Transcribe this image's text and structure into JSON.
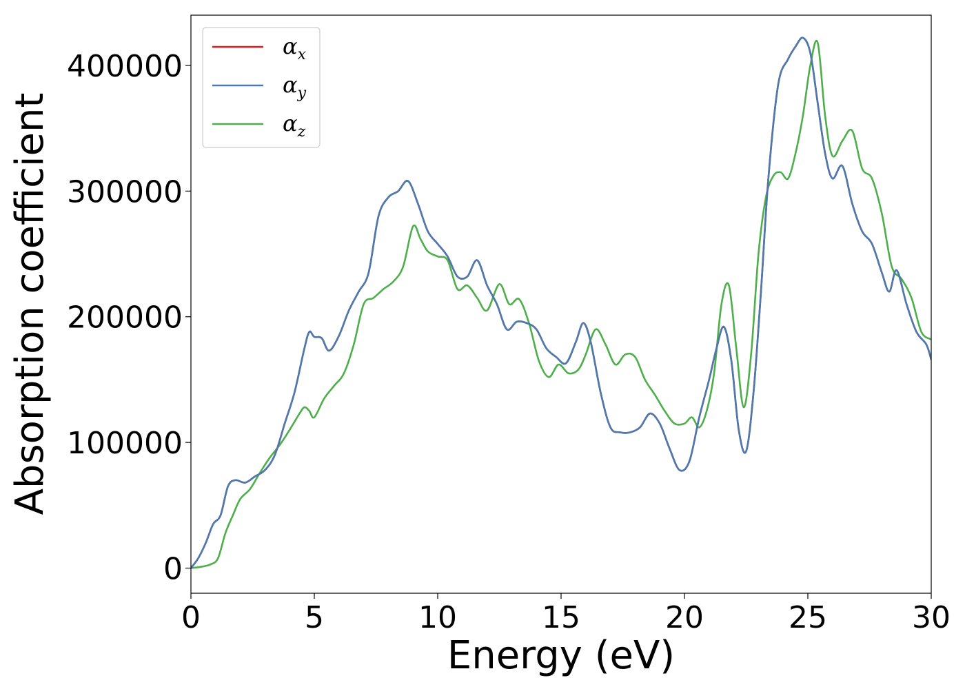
{
  "chart_data": {
    "type": "line",
    "title": "",
    "xlabel": "Energy (eV)",
    "ylabel": "Absorption coefficient",
    "xlim": [
      0,
      30
    ],
    "ylim": [
      -20000,
      440000
    ],
    "xticks": [
      "0",
      "5",
      "10",
      "15",
      "20",
      "25",
      "30"
    ],
    "yticks": [
      "0",
      "100000",
      "200000",
      "300000",
      "400000"
    ],
    "xtick_values": [
      0,
      5,
      10,
      15,
      20,
      25,
      30
    ],
    "ytick_values": [
      0,
      100000,
      200000,
      300000,
      400000
    ],
    "grid": false,
    "legend_position": "top-left",
    "series": [
      {
        "name": "α_x",
        "label_base": "α",
        "label_sub": "x",
        "color": "#e41a1c",
        "x": [
          0,
          0.3,
          0.6,
          0.9,
          1.2,
          1.5,
          1.8,
          2.2,
          2.6,
          3.0,
          3.4,
          3.8,
          4.2,
          4.6,
          4.8,
          5.0,
          5.3,
          5.6,
          6.0,
          6.4,
          6.8,
          7.2,
          7.6,
          8.0,
          8.4,
          8.8,
          9.2,
          9.6,
          10.0,
          10.4,
          10.8,
          11.2,
          11.6,
          12.0,
          12.4,
          12.8,
          13.2,
          13.6,
          14.0,
          14.4,
          14.8,
          15.2,
          15.6,
          15.9,
          16.2,
          16.6,
          17.0,
          17.4,
          17.8,
          18.2,
          18.6,
          19.0,
          19.4,
          19.8,
          20.2,
          20.6,
          21.0,
          21.3,
          21.6,
          21.9,
          22.2,
          22.5,
          22.8,
          23.1,
          23.4,
          23.8,
          24.2,
          24.5,
          24.8,
          25.1,
          25.4,
          25.7,
          26.0,
          26.4,
          26.8,
          27.2,
          27.6,
          28.0,
          28.3,
          28.6,
          29.0,
          29.4,
          29.8,
          30.0
        ],
        "values": [
          0,
          8000,
          20000,
          35000,
          42000,
          65000,
          70000,
          68000,
          73000,
          78000,
          90000,
          115000,
          140000,
          175000,
          188000,
          184000,
          183000,
          173000,
          185000,
          205000,
          220000,
          235000,
          280000,
          295000,
          300000,
          308000,
          290000,
          268000,
          258000,
          248000,
          232000,
          232000,
          245000,
          225000,
          210000,
          190000,
          196000,
          195000,
          190000,
          175000,
          168000,
          163000,
          180000,
          195000,
          180000,
          140000,
          112000,
          108000,
          108000,
          112000,
          123000,
          115000,
          95000,
          78000,
          85000,
          120000,
          150000,
          175000,
          192000,
          165000,
          110000,
          93000,
          140000,
          220000,
          310000,
          385000,
          405000,
          415000,
          422000,
          410000,
          370000,
          330000,
          310000,
          320000,
          290000,
          268000,
          258000,
          235000,
          220000,
          237000,
          210000,
          188000,
          178000,
          166000
        ]
      },
      {
        "name": "α_y",
        "label_base": "α",
        "label_sub": "y",
        "color": "#4a7bb0",
        "x": [
          0,
          0.3,
          0.6,
          0.9,
          1.2,
          1.5,
          1.8,
          2.2,
          2.6,
          3.0,
          3.4,
          3.8,
          4.2,
          4.6,
          4.8,
          5.0,
          5.3,
          5.6,
          6.0,
          6.4,
          6.8,
          7.2,
          7.6,
          8.0,
          8.4,
          8.8,
          9.2,
          9.6,
          10.0,
          10.4,
          10.8,
          11.2,
          11.6,
          12.0,
          12.4,
          12.8,
          13.2,
          13.6,
          14.0,
          14.4,
          14.8,
          15.2,
          15.6,
          15.9,
          16.2,
          16.6,
          17.0,
          17.4,
          17.8,
          18.2,
          18.6,
          19.0,
          19.4,
          19.8,
          20.2,
          20.6,
          21.0,
          21.3,
          21.6,
          21.9,
          22.2,
          22.5,
          22.8,
          23.1,
          23.4,
          23.8,
          24.2,
          24.5,
          24.8,
          25.1,
          25.4,
          25.7,
          26.0,
          26.4,
          26.8,
          27.2,
          27.6,
          28.0,
          28.3,
          28.6,
          29.0,
          29.4,
          29.8,
          30.0
        ],
        "values": [
          0,
          8000,
          20000,
          35000,
          42000,
          65000,
          70000,
          68000,
          73000,
          78000,
          90000,
          115000,
          140000,
          175000,
          188000,
          184000,
          183000,
          173000,
          185000,
          205000,
          220000,
          235000,
          280000,
          295000,
          300000,
          308000,
          290000,
          268000,
          258000,
          248000,
          232000,
          232000,
          245000,
          225000,
          210000,
          190000,
          196000,
          195000,
          190000,
          175000,
          168000,
          163000,
          180000,
          195000,
          180000,
          140000,
          112000,
          108000,
          108000,
          112000,
          123000,
          115000,
          95000,
          78000,
          85000,
          120000,
          150000,
          175000,
          192000,
          165000,
          110000,
          93000,
          140000,
          220000,
          310000,
          385000,
          405000,
          415000,
          422000,
          410000,
          370000,
          330000,
          310000,
          320000,
          290000,
          268000,
          258000,
          235000,
          220000,
          237000,
          210000,
          188000,
          178000,
          166000
        ]
      },
      {
        "name": "α_z",
        "label_base": "α",
        "label_sub": "z",
        "color": "#4daf4a",
        "x": [
          0,
          0.4,
          0.8,
          1.1,
          1.4,
          1.7,
          2.0,
          2.4,
          2.8,
          3.2,
          3.6,
          4.0,
          4.4,
          4.6,
          4.8,
          5.0,
          5.4,
          5.8,
          6.2,
          6.6,
          7.0,
          7.4,
          7.8,
          8.2,
          8.6,
          9.0,
          9.3,
          9.6,
          10.0,
          10.4,
          10.8,
          11.2,
          11.6,
          12.0,
          12.5,
          12.9,
          13.3,
          13.7,
          14.1,
          14.5,
          14.9,
          15.3,
          15.7,
          16.0,
          16.4,
          16.8,
          17.2,
          17.6,
          18.0,
          18.4,
          18.8,
          19.2,
          19.6,
          20.0,
          20.3,
          20.6,
          20.9,
          21.2,
          21.5,
          21.8,
          22.1,
          22.4,
          22.7,
          23.0,
          23.3,
          23.6,
          23.9,
          24.2,
          24.5,
          24.8,
          25.1,
          25.4,
          25.7,
          26.0,
          26.4,
          26.8,
          27.2,
          27.6,
          28.0,
          28.4,
          28.8,
          29.2,
          29.6,
          30.0
        ],
        "values": [
          0,
          1000,
          3000,
          8000,
          28000,
          42000,
          55000,
          63000,
          76000,
          88000,
          98000,
          110000,
          123000,
          128000,
          125000,
          120000,
          135000,
          145000,
          155000,
          178000,
          210000,
          215000,
          222000,
          228000,
          240000,
          272000,
          262000,
          252000,
          248000,
          245000,
          222000,
          225000,
          215000,
          205000,
          226000,
          210000,
          214000,
          195000,
          165000,
          152000,
          162000,
          155000,
          158000,
          170000,
          190000,
          178000,
          162000,
          170000,
          168000,
          150000,
          138000,
          125000,
          115000,
          115000,
          120000,
          112000,
          125000,
          155000,
          210000,
          225000,
          175000,
          128000,
          170000,
          250000,
          295000,
          312000,
          315000,
          310000,
          330000,
          360000,
          400000,
          418000,
          360000,
          328000,
          340000,
          348000,
          318000,
          310000,
          282000,
          240000,
          230000,
          215000,
          188000,
          182000
        ]
      }
    ]
  }
}
